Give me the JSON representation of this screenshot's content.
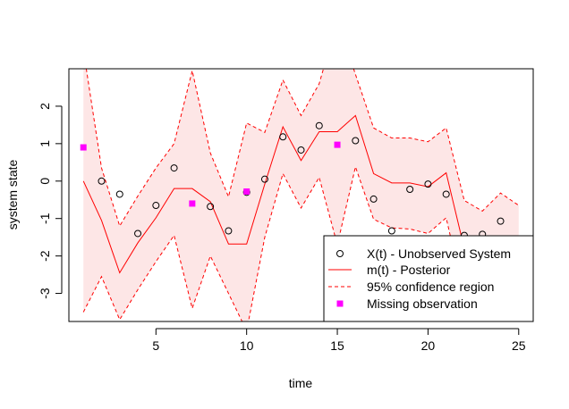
{
  "chart_data": {
    "type": "line",
    "title": "",
    "xlabel": "time",
    "ylabel": "system state",
    "xlim": [
      0.2,
      25.8
    ],
    "ylim": [
      -3.75,
      3.0
    ],
    "x_ticks": [
      5,
      10,
      15,
      20,
      25
    ],
    "y_ticks": [
      -3,
      -2,
      -1,
      0,
      1,
      2
    ],
    "grid": false,
    "legend_position": "bottom-right",
    "colors": {
      "posterior": "#ff0000",
      "confidence": "#ff0000",
      "band_fill": "#fde6e6",
      "missing": "#ff00ff",
      "unobserved": "#000000"
    },
    "series": [
      {
        "name": "X(t) - Unobserved System",
        "kind": "points-open-circle",
        "x": [
          2,
          3,
          4,
          5,
          6,
          8,
          9,
          10,
          11,
          12,
          13,
          14,
          16,
          17,
          18,
          19,
          20,
          21,
          22,
          23,
          24
        ],
        "y": [
          0.0,
          -0.35,
          -1.4,
          -0.65,
          0.35,
          -0.68,
          -1.33,
          -0.3,
          0.05,
          1.18,
          0.83,
          1.48,
          1.08,
          -0.48,
          -1.33,
          -0.22,
          -0.08,
          -0.35,
          -1.45,
          -1.42,
          -1.07
        ]
      },
      {
        "name": "m(t) - Posterior",
        "kind": "line-solid",
        "x": [
          1,
          2,
          3,
          4,
          5,
          6,
          7,
          8,
          9,
          10,
          11,
          12,
          13,
          14,
          15,
          16,
          17,
          18,
          19,
          20,
          21,
          22,
          23,
          24,
          25
        ],
        "y": [
          0.0,
          -1.05,
          -2.45,
          -1.65,
          -0.98,
          -0.2,
          -0.2,
          -0.55,
          -1.68,
          -1.68,
          -0.08,
          1.45,
          0.55,
          1.32,
          1.32,
          1.75,
          0.2,
          -0.05,
          -0.05,
          -0.15,
          0.22,
          -1.8,
          -2.1,
          -1.65,
          -2.2
        ]
      },
      {
        "name": "95% confidence region",
        "kind": "band-dashed",
        "x": [
          1,
          2,
          3,
          4,
          5,
          6,
          7,
          8,
          9,
          10,
          11,
          12,
          13,
          14,
          15,
          16,
          17,
          18,
          19,
          20,
          21,
          22,
          23,
          24,
          25
        ],
        "upper": [
          3.5,
          0.35,
          -1.2,
          -0.4,
          0.35,
          1.0,
          2.95,
          0.75,
          -0.42,
          1.55,
          1.3,
          2.7,
          1.75,
          2.6,
          4.3,
          2.85,
          1.42,
          1.15,
          1.15,
          1.05,
          1.42,
          -0.52,
          -0.8,
          -0.32,
          -0.65
        ],
        "lower": [
          -3.5,
          -2.55,
          -3.7,
          -2.9,
          -2.15,
          -1.45,
          -3.4,
          -2.0,
          -3.0,
          -4.0,
          -1.5,
          0.2,
          -0.72,
          0.1,
          -1.7,
          0.38,
          -1.02,
          -1.25,
          -1.28,
          -1.4,
          -0.98,
          -3.08,
          -3.38,
          -2.95,
          -3.75
        ]
      },
      {
        "name": "Missing observation",
        "kind": "points-filled-square",
        "x": [
          1,
          7,
          10,
          15
        ],
        "y": [
          0.9,
          -0.6,
          -0.28,
          0.97
        ]
      }
    ]
  }
}
